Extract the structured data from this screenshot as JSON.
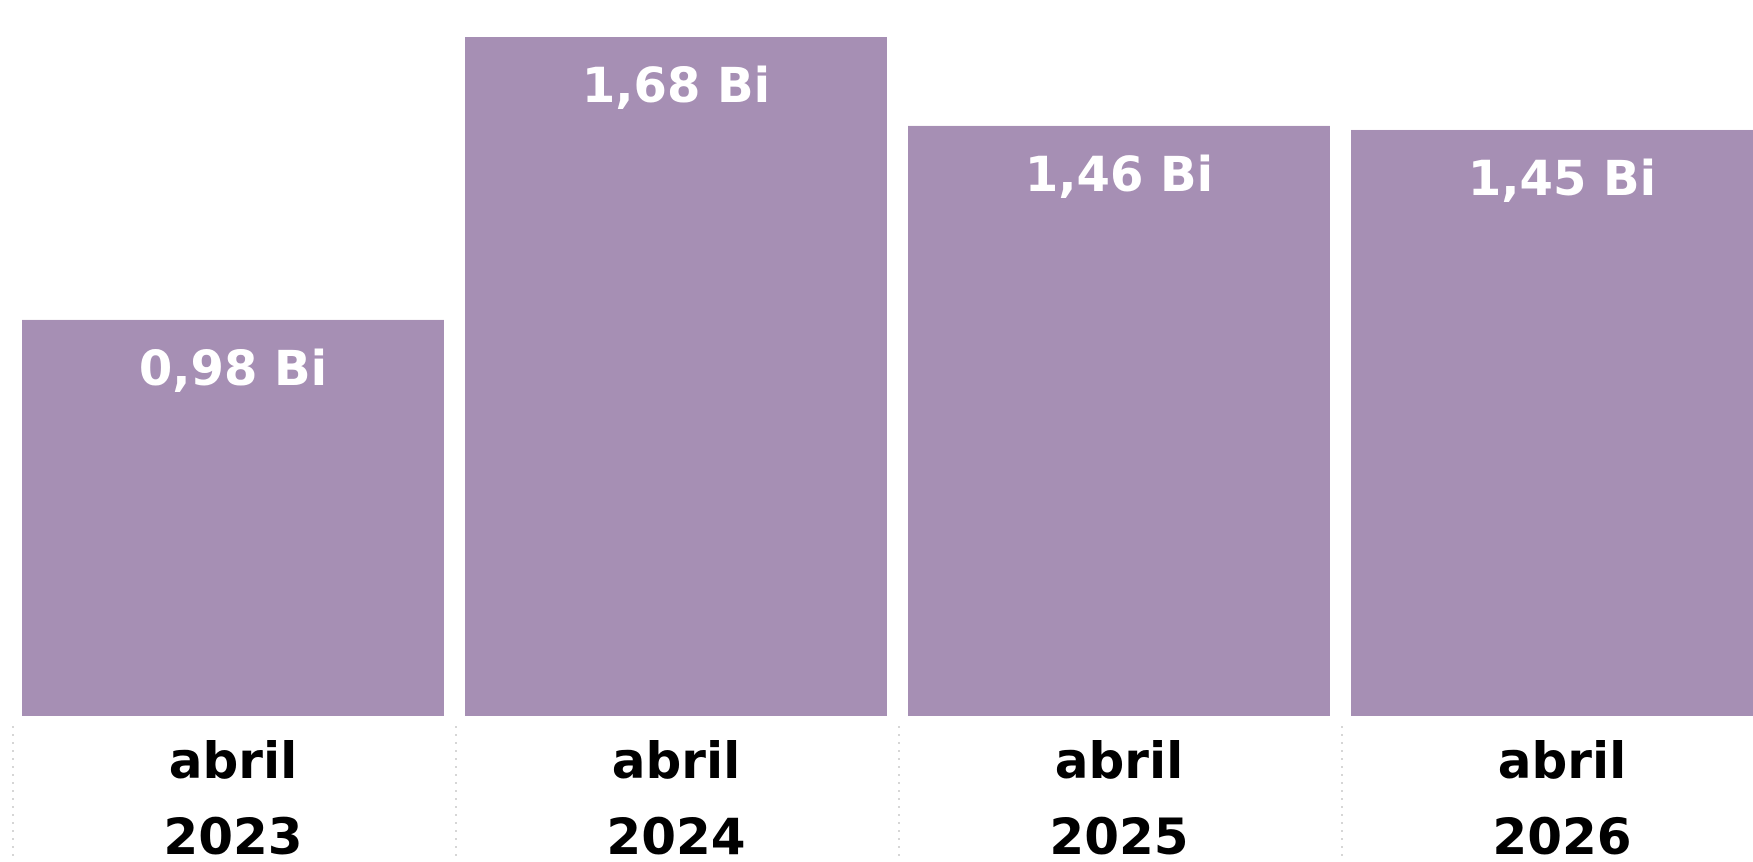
{
  "chart_data": {
    "type": "bar",
    "categories": [
      "abril 2023",
      "abril 2024",
      "abril 2025",
      "abril 2026"
    ],
    "category_lines": [
      [
        "abril",
        "2023"
      ],
      [
        "abril",
        "2024"
      ],
      [
        "abril",
        "2025"
      ],
      [
        "abril",
        "2026"
      ]
    ],
    "values": [
      0.98,
      1.68,
      1.46,
      1.45
    ],
    "data_labels": [
      "0,98 Bi",
      "1,68 Bi",
      "1,46 Bi",
      "1,45 Bi"
    ],
    "unit": "Bi",
    "ylim": [
      0,
      1.68
    ],
    "grid": false,
    "legend": "none",
    "title": "",
    "xlabel": "",
    "ylabel": "",
    "colors": {
      "bar": "#a68fb4",
      "label_on_bar": "#ffffff",
      "category_text": "#000000",
      "separator": "#c8c8c8"
    }
  }
}
